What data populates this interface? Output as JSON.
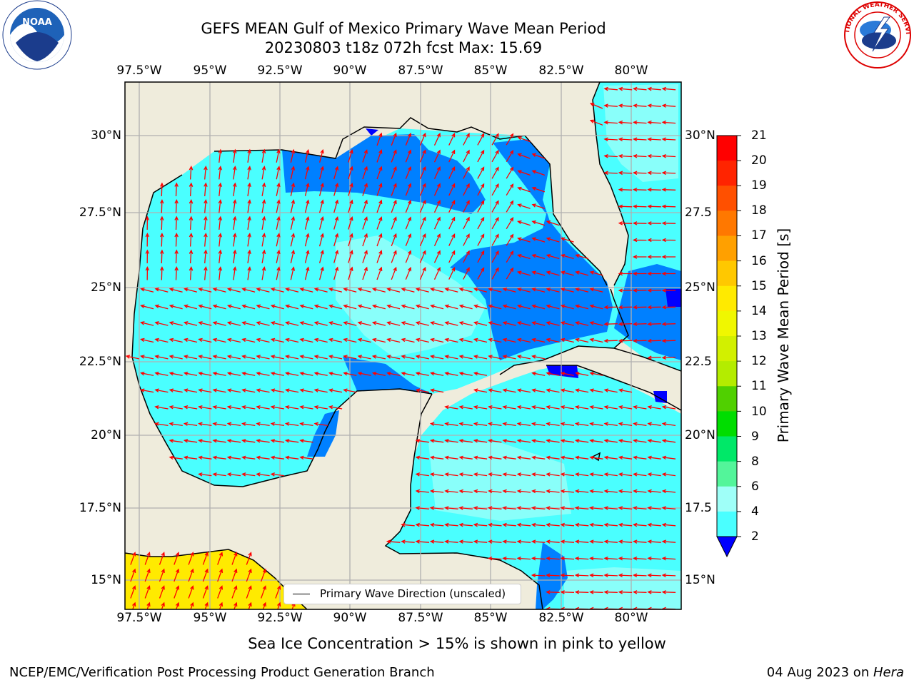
{
  "header": {
    "title_line1": "GEFS MEAN Gulf of Mexico Primary Wave Mean Period",
    "title_line2": "20230803 t18z 072h fcst   Max: 15.69"
  },
  "logos": {
    "noaa_text": "NOAA",
    "nws_text": "NATIONAL WEATHER SERVICE"
  },
  "map": {
    "lon_labels": [
      "97.5°W",
      "95°W",
      "92.5°W",
      "90°W",
      "87.5°W",
      "85°W",
      "82.5°W",
      "80°W"
    ],
    "lat_labels": [
      "30°N",
      "27.5°N",
      "25°N",
      "22.5°N",
      "20°N",
      "17.5°N",
      "15°N"
    ],
    "lat_labels_right": [
      "30°N",
      "27.5",
      "25°N",
      "22.5",
      "20°N",
      "17.5",
      "15°N"
    ],
    "legend_label": "Primary Wave Direction (unscaled)",
    "colors": {
      "land": "#efecdc",
      "coast": "#000000",
      "grid": "#b0b0b0",
      "arrow": "#ff0000"
    }
  },
  "colorbar": {
    "label": "Primary Wave Mean Period [s]",
    "ticks": [
      "21",
      "20",
      "19",
      "18",
      "17",
      "16",
      "15",
      "14",
      "13",
      "12",
      "11",
      "10",
      "9",
      "8",
      "6",
      "4",
      "2"
    ],
    "colors": [
      "#ff0000",
      "#ff2400",
      "#ff5000",
      "#ff7800",
      "#ffa000",
      "#ffc800",
      "#ffea00",
      "#f0f700",
      "#d2f000",
      "#b4ec00",
      "#50d000",
      "#00dd00",
      "#00e868",
      "#53f59a",
      "#9ffff8",
      "#4affff",
      "#00ffff",
      "#0080ff"
    ],
    "extend_color": "#0000ff"
  },
  "notes": {
    "ice": "Sea Ice Concentration > 15% is shown in pink to yellow"
  },
  "footer": {
    "left": "NCEP/EMC/Verification Post Processing Product Generation Branch",
    "date": "04 Aug 2023 on ",
    "machine": "Hera"
  }
}
